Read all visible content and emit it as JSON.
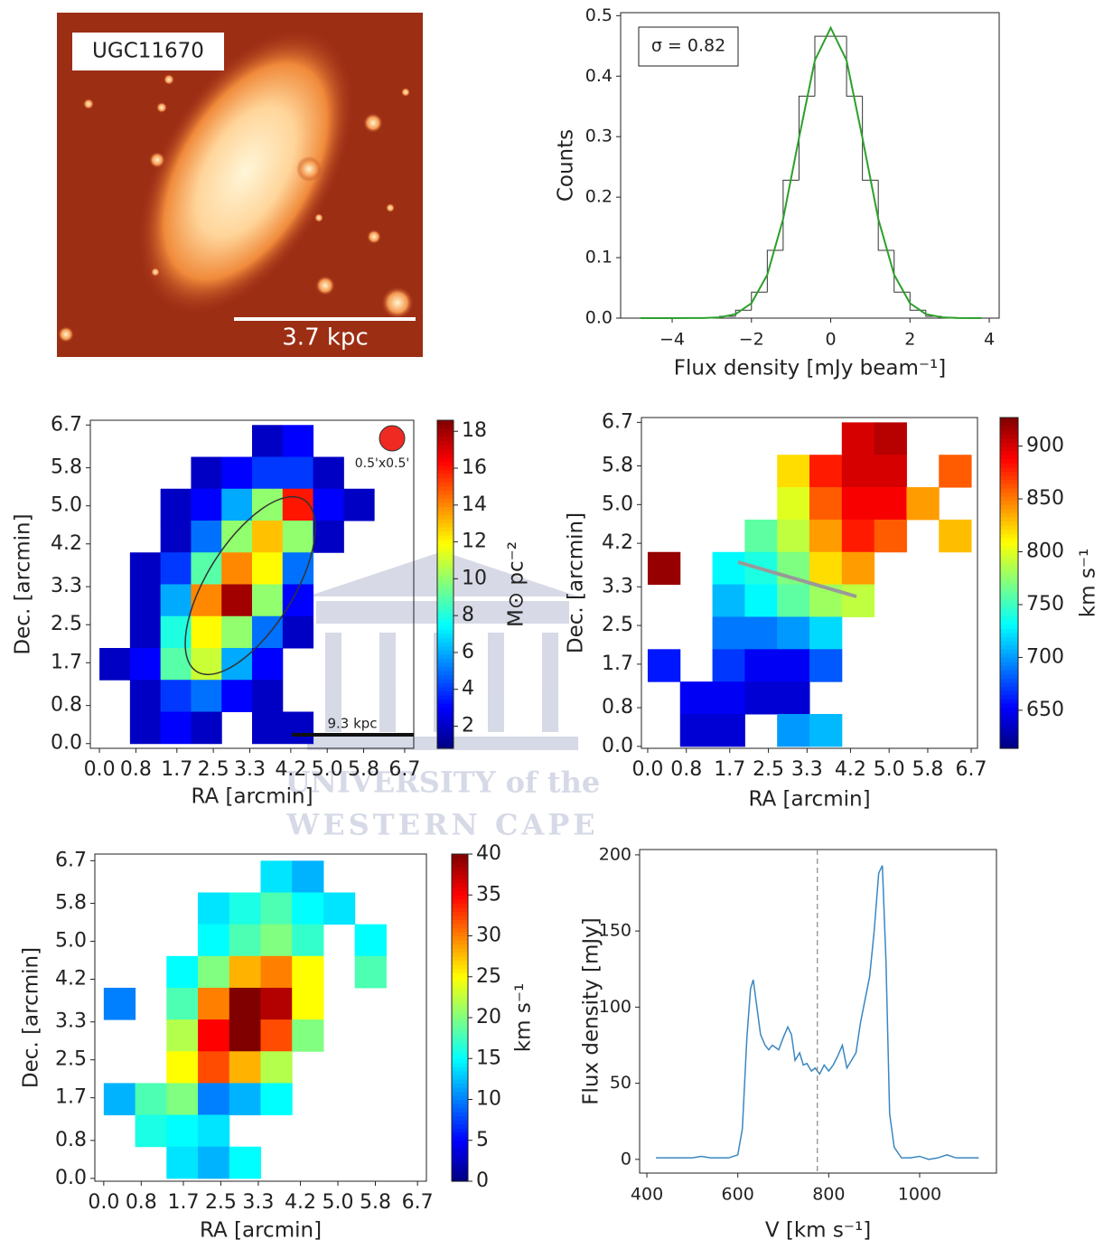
{
  "chart_data": [
    {
      "type": "image",
      "label": "UGC11670",
      "scale_bar": "3.7 kpc"
    },
    {
      "type": "histogram",
      "xlabel": "Flux density [mJy beam⁻¹]",
      "ylabel": "Counts",
      "annotation": "σ = 0.82",
      "xlim": [
        -5.3,
        4.25
      ],
      "ylim": [
        0,
        0.505
      ],
      "xticks": [
        {
          "value": -4,
          "label": "−4"
        },
        {
          "value": -2,
          "label": "−2"
        },
        0,
        2,
        4
      ],
      "yticks": [
        {
          "value": 0,
          "label": "0.0"
        },
        0.1,
        0.2,
        0.3,
        0.4,
        0.5
      ],
      "bins": [
        -4.8,
        -4.4,
        -4.0,
        -3.6,
        -3.2,
        -2.8,
        -2.4,
        -2.0,
        -1.6,
        -1.2,
        -0.8,
        -0.4,
        0.0,
        0.4,
        0.8,
        1.2,
        1.6,
        2.0,
        2.4,
        2.8,
        3.2,
        3.6
      ],
      "counts": [
        0,
        0,
        0,
        0,
        0.0006,
        0.003,
        0.013,
        0.043,
        0.112,
        0.228,
        0.367,
        0.466,
        0.466,
        0.367,
        0.228,
        0.112,
        0.043,
        0.013,
        0.003,
        0.001,
        0
      ],
      "color": "#333333",
      "fit": {
        "color": "#2ca02c",
        "x": [
          -4.8,
          -4.0,
          -3.2,
          -2.8,
          -2.4,
          -2.0,
          -1.6,
          -1.2,
          -0.8,
          -0.4,
          0,
          0.4,
          0.8,
          1.2,
          1.6,
          2.0,
          2.4,
          2.8,
          3.2,
          3.8
        ],
        "values": [
          0,
          0,
          0.0002,
          0.0014,
          0.0066,
          0.0246,
          0.0718,
          0.164,
          0.298,
          0.426,
          0.48,
          0.426,
          0.298,
          0.164,
          0.0718,
          0.0246,
          0.0066,
          0.0014,
          0.0002,
          0
        ]
      }
    },
    {
      "type": "heatmap",
      "xlabel": "RA [arcmin]",
      "ylabel": "Dec. [arcmin]",
      "clabel": "M⊙ pc⁻²",
      "colormap": "jet",
      "beam_label": "0.5'x0.5'",
      "scale_bar": "9.3 kpc",
      "xlim": [
        -0.2,
        6.9
      ],
      "ylim": [
        -0.1,
        6.8
      ],
      "xticks": [
        {
          "value": 0,
          "label": "0.0"
        },
        0.8,
        1.7,
        2.5,
        3.3,
        4.2,
        {
          "value": 5,
          "label": "5.0"
        },
        5.8,
        6.7
      ],
      "yticks": [
        {
          "value": 0,
          "label": "0.0"
        },
        0.8,
        1.7,
        2.5,
        3.3,
        4.2,
        {
          "value": 5,
          "label": "5.0"
        },
        5.8,
        6.7
      ],
      "clim": [
        0.8,
        18.6
      ],
      "cticks": [
        2,
        4,
        6,
        8,
        10,
        12,
        14,
        16,
        18
      ],
      "z": [
        [
          null,
          null,
          null,
          null,
          null,
          2,
          3,
          null,
          null,
          null
        ],
        [
          null,
          null,
          null,
          2,
          3,
          4,
          4,
          2,
          null,
          null
        ],
        [
          null,
          null,
          2,
          3,
          6,
          10,
          16,
          3,
          2,
          null
        ],
        [
          null,
          null,
          2,
          5,
          10,
          13,
          10,
          2,
          null,
          null
        ],
        [
          null,
          2,
          4,
          9,
          14,
          12,
          5,
          null,
          null,
          null
        ],
        [
          null,
          2,
          6,
          14,
          18,
          10,
          3,
          null,
          null,
          null
        ],
        [
          null,
          2,
          8,
          12,
          10,
          5,
          2,
          null,
          null,
          null
        ],
        [
          2,
          3,
          9,
          11,
          6,
          3,
          null,
          null,
          null,
          null
        ],
        [
          null,
          2,
          4,
          5,
          3,
          2,
          null,
          null,
          null,
          null
        ],
        [
          null,
          2,
          3,
          2,
          null,
          2,
          2,
          null,
          null,
          null
        ]
      ]
    },
    {
      "type": "heatmap",
      "xlabel": "RA [arcmin]",
      "ylabel": "Dec. [arcmin]",
      "clabel": "km s⁻¹",
      "colormap": "jet",
      "xlim": [
        -0.13,
        6.83
      ],
      "ylim": [
        -0.04,
        6.8
      ],
      "xticks": [
        {
          "value": 0,
          "label": "0.0"
        },
        0.8,
        1.7,
        2.5,
        3.3,
        4.2,
        {
          "value": 5,
          "label": "5.0"
        },
        5.8,
        6.7
      ],
      "yticks": [
        {
          "value": 0,
          "label": "0.0"
        },
        0.8,
        1.7,
        2.5,
        3.3,
        4.2,
        {
          "value": 5,
          "label": "5.0"
        },
        5.8,
        6.7
      ],
      "clim": [
        614,
        927
      ],
      "cticks": [
        650,
        700,
        750,
        800,
        850,
        900
      ],
      "z": [
        [
          null,
          null,
          null,
          null,
          null,
          null,
          900,
          910,
          null,
          null
        ],
        [
          null,
          null,
          null,
          null,
          820,
          880,
          900,
          900,
          null,
          860
        ],
        [
          null,
          null,
          null,
          null,
          800,
          860,
          890,
          890,
          840,
          null
        ],
        [
          null,
          null,
          null,
          760,
          790,
          840,
          880,
          860,
          null,
          830
        ],
        [
          920,
          null,
          730,
          740,
          770,
          820,
          840,
          null,
          null,
          null
        ],
        [
          null,
          null,
          710,
          730,
          760,
          780,
          790,
          null,
          null,
          null
        ],
        [
          null,
          null,
          690,
          690,
          700,
          720,
          null,
          null,
          null,
          null
        ],
        [
          660,
          null,
          670,
          650,
          650,
          680,
          null,
          null,
          null,
          null
        ],
        [
          null,
          650,
          650,
          640,
          640,
          null,
          null,
          null,
          null,
          null
        ],
        [
          null,
          640,
          640,
          null,
          700,
          710,
          null,
          null,
          null,
          null
        ]
      ]
    },
    {
      "type": "heatmap",
      "xlabel": "RA [arcmin]",
      "ylabel": "Dec. [arcmin]",
      "clabel": "km s⁻¹",
      "colormap": "jet",
      "xlim": [
        -0.19,
        6.89
      ],
      "ylim": [
        -0.06,
        6.84
      ],
      "xticks": [
        {
          "value": 0,
          "label": "0.0"
        },
        0.8,
        1.7,
        2.5,
        3.3,
        4.2,
        {
          "value": 5,
          "label": "5.0"
        },
        5.8,
        6.7
      ],
      "yticks": [
        {
          "value": 0,
          "label": "0.0"
        },
        0.8,
        1.7,
        2.5,
        3.3,
        4.2,
        {
          "value": 5,
          "label": "5.0"
        },
        5.8,
        6.7
      ],
      "clim": [
        0,
        40
      ],
      "cticks": [
        0,
        5,
        10,
        15,
        20,
        25,
        30,
        35,
        40
      ],
      "z": [
        [
          null,
          null,
          null,
          null,
          null,
          14,
          12,
          null,
          null,
          null
        ],
        [
          null,
          null,
          null,
          14,
          16,
          18,
          15,
          14,
          null,
          null
        ],
        [
          null,
          null,
          null,
          15,
          18,
          20,
          17,
          null,
          15,
          null
        ],
        [
          null,
          null,
          15,
          20,
          28,
          30,
          25,
          null,
          18,
          null
        ],
        [
          10,
          null,
          18,
          30,
          40,
          38,
          25,
          null,
          null,
          null
        ],
        [
          null,
          null,
          22,
          35,
          40,
          32,
          20,
          null,
          null,
          null
        ],
        [
          null,
          null,
          25,
          32,
          28,
          22,
          null,
          null,
          null,
          null
        ],
        [
          12,
          18,
          20,
          10,
          12,
          15,
          null,
          null,
          null,
          null
        ],
        [
          null,
          16,
          15,
          14,
          null,
          null,
          null,
          null,
          null,
          null
        ],
        [
          null,
          null,
          14,
          12,
          15,
          null,
          null,
          null,
          null,
          null
        ]
      ]
    },
    {
      "type": "line",
      "xlabel": "V [km s⁻¹]",
      "ylabel": "Flux density [mJy]",
      "xlim": [
        384,
        1169
      ],
      "ylim": [
        -9,
        203.5
      ],
      "xticks": [
        400,
        600,
        800,
        1000
      ],
      "yticks": [
        0,
        50,
        100,
        150,
        200
      ],
      "vline": 775,
      "x": [
        420,
        460,
        500,
        520,
        540,
        580,
        600,
        610,
        620,
        628,
        634,
        642,
        650,
        660,
        668,
        676,
        690,
        700,
        710,
        718,
        726,
        736,
        744,
        752,
        762,
        770,
        780,
        790,
        800,
        810,
        820,
        830,
        840,
        850,
        860,
        870,
        880,
        890,
        900,
        910,
        918,
        926,
        934,
        944,
        960,
        980,
        1000,
        1020,
        1040,
        1060,
        1080,
        1100,
        1130
      ],
      "series": [
        {
          "color": "#3a87c0",
          "values": [
            1,
            1,
            1,
            2,
            1,
            1,
            3,
            20,
            80,
            112,
            118,
            100,
            82,
            75,
            72,
            75,
            72,
            80,
            87,
            82,
            65,
            70,
            62,
            63,
            58,
            60,
            56,
            62,
            58,
            62,
            68,
            75,
            60,
            65,
            70,
            90,
            105,
            120,
            150,
            188,
            193,
            130,
            30,
            8,
            1,
            1,
            2,
            0,
            1,
            3,
            1,
            1,
            1
          ]
        }
      ]
    }
  ],
  "watermark": {
    "lines": [
      "UNIVERSITY of the",
      "WESTERN CAPE"
    ]
  }
}
